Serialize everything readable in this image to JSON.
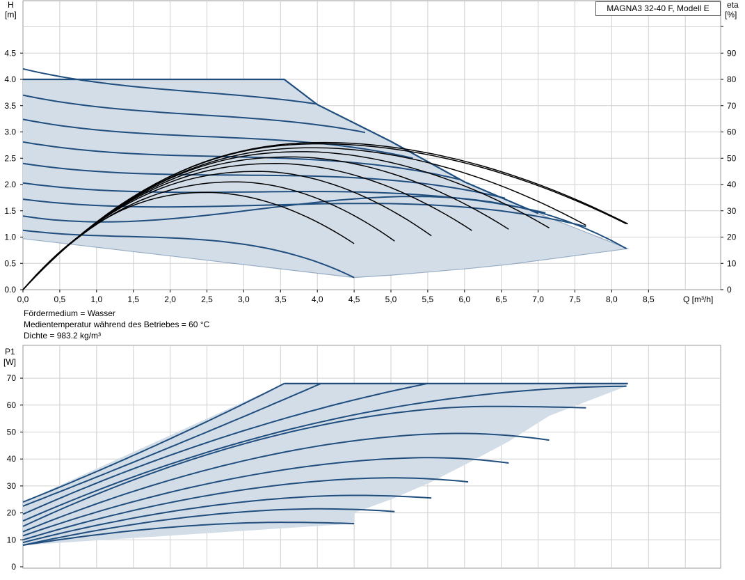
{
  "model_label": "MAGNA3 32-40 F, Modell E",
  "notes": {
    "medium": "Fördermedium = Wasser",
    "temperature": "Medientemperatur während des Betriebes = 60 °C",
    "density": "Dichte = 983.2 kg/m³"
  },
  "colors": {
    "grid": "#cfcfcf",
    "region_fill": "#d3dde8",
    "curve_blue": "#1f4e7e",
    "curve_black": "#000000",
    "border": "#9a9a9a"
  },
  "chart_data": [
    {
      "type": "line",
      "title": "",
      "xlabel": "Q [m³/h]",
      "ylabel": "H [m]",
      "y2label": "eta [%]",
      "xlim": [
        0,
        9.5
      ],
      "ylim": [
        0,
        5.3
      ],
      "y2lim": [
        0,
        106
      ],
      "x_ticks": [
        "0,0",
        "0,5",
        "1,0",
        "1,5",
        "2,0",
        "2,5",
        "3,0",
        "3,5",
        "4,0",
        "4,5",
        "5,0",
        "5,5",
        "6,0",
        "6,5",
        "7,0",
        "7,5",
        "8,0",
        "8,5"
      ],
      "y_ticks": [
        "0.0",
        "0.5",
        "1.0",
        "1.5",
        "2.0",
        "2.5",
        "3.0",
        "3.5",
        "4.0",
        "4.5"
      ],
      "y2_ticks": [
        "0",
        "10",
        "20",
        "30",
        "40",
        "50",
        "60",
        "70",
        "80",
        "90"
      ],
      "grid": true,
      "head_envelope": [
        [
          0,
          4.0
        ],
        [
          3.55,
          4.0
        ],
        [
          4.0,
          3.52
        ],
        [
          5.0,
          2.82
        ],
        [
          6.0,
          2.05
        ],
        [
          7.0,
          1.45
        ],
        [
          8.22,
          0.78
        ],
        [
          7.15,
          0.58
        ],
        [
          6.6,
          0.48
        ],
        [
          6.05,
          0.4
        ],
        [
          5.55,
          0.34
        ],
        [
          5.05,
          0.28
        ],
        [
          4.5,
          0.23
        ],
        [
          0,
          0.97
        ]
      ],
      "head_curves": [
        {
          "h0": 3.6,
          "peak": [
            1.8,
            3.9
          ],
          "end": [
            4.0,
            3.53
          ]
        },
        {
          "h0": 3.2,
          "peak": [
            1.7,
            3.45
          ],
          "end": [
            4.65,
            2.99
          ]
        },
        {
          "h0": 2.8,
          "peak": [
            1.6,
            3.02
          ],
          "end": [
            5.3,
            2.5
          ]
        },
        {
          "h0": 2.43,
          "peak": [
            1.55,
            2.62
          ],
          "end": [
            5.95,
            2.09
          ]
        },
        {
          "h0": 2.08,
          "peak": [
            1.5,
            2.24
          ],
          "end": [
            6.55,
            1.74
          ]
        },
        {
          "h0": 1.75,
          "peak": [
            1.45,
            1.89
          ],
          "end": [
            7.1,
            1.46
          ]
        },
        {
          "h0": 1.48,
          "peak": [
            1.35,
            1.6
          ],
          "end": [
            7.65,
            1.2
          ]
        },
        {
          "h0": 1.2,
          "peak": [
            0.9,
            1.3
          ],
          "end": [
            8.2,
            0.78
          ]
        },
        {
          "h0": 0.97,
          "peak": [
            0.9,
            1.05
          ],
          "end": [
            4.5,
            0.23
          ]
        }
      ],
      "eta_curves": [
        {
          "peak": [
            2.5,
            37
          ],
          "end": [
            4.5,
            17.5
          ]
        },
        {
          "peak": [
            2.9,
            41
          ],
          "end": [
            5.05,
            18.5
          ]
        },
        {
          "peak": [
            3.2,
            45
          ],
          "end": [
            5.55,
            20.5
          ]
        },
        {
          "peak": [
            3.45,
            48
          ],
          "end": [
            6.1,
            22.5
          ]
        },
        {
          "peak": [
            3.65,
            50.5
          ],
          "end": [
            6.6,
            23
          ]
        },
        {
          "peak": [
            3.8,
            52.5
          ],
          "end": [
            7.15,
            23.5
          ]
        },
        {
          "peak": [
            3.95,
            54
          ],
          "end": [
            7.65,
            24.5
          ]
        },
        {
          "peak": [
            4.05,
            55.5
          ],
          "end": [
            8.2,
            25
          ]
        },
        {
          "peak": [
            4.1,
            56
          ],
          "end": [
            8.22,
            25
          ]
        }
      ]
    },
    {
      "type": "line",
      "title": "",
      "xlabel": "",
      "ylabel": "P1 [W]",
      "xlim": [
        0,
        9.5
      ],
      "ylim": [
        0,
        78
      ],
      "y_ticks": [
        "0",
        "10",
        "20",
        "30",
        "40",
        "50",
        "60",
        "70"
      ],
      "grid": true,
      "power_envelope": [
        [
          0,
          24
        ],
        [
          3.55,
          68
        ],
        [
          8.22,
          68
        ],
        [
          8.2,
          67
        ],
        [
          7.15,
          56
        ],
        [
          6.6,
          46.5
        ],
        [
          6.05,
          38.5
        ],
        [
          5.55,
          31.5
        ],
        [
          5.05,
          25.5
        ],
        [
          4.5,
          20
        ],
        [
          4.5,
          16
        ],
        [
          0,
          8
        ]
      ],
      "power_curves": [
        {
          "start": 24,
          "mid": [
            1.8,
            45
          ],
          "end": [
            3.55,
            68
          ]
        },
        {
          "start": 22.5,
          "mid": [
            2.1,
            45.5
          ],
          "end": [
            4.05,
            68
          ]
        },
        {
          "start": 19.5,
          "mid": [
            2.6,
            47
          ],
          "end": [
            5.5,
            68
          ]
        },
        {
          "start": 17,
          "mid": [
            3.2,
            48
          ],
          "end": [
            8.2,
            67
          ]
        },
        {
          "start": 15,
          "mid": [
            3.6,
            46
          ],
          "end": [
            7.65,
            59
          ],
          "peak": [
            6.3,
            59.5
          ]
        },
        {
          "start": 13,
          "mid": [
            3.3,
            40
          ],
          "end": [
            7.15,
            47
          ],
          "peak": [
            5.9,
            49.5
          ]
        },
        {
          "start": 11.5,
          "mid": [
            3.1,
            34
          ],
          "end": [
            6.6,
            38.5
          ],
          "peak": [
            5.5,
            40.5
          ]
        },
        {
          "start": 10,
          "mid": [
            3.0,
            28.5
          ],
          "end": [
            6.05,
            31.5
          ],
          "peak": [
            5.0,
            33
          ]
        },
        {
          "start": 9,
          "mid": [
            2.8,
            24
          ],
          "end": [
            5.55,
            25.5
          ],
          "peak": [
            4.5,
            26.5
          ]
        },
        {
          "start": 8,
          "mid": [
            2.5,
            18.5
          ],
          "end": [
            5.05,
            20.5
          ],
          "peak": [
            4.0,
            21.5
          ]
        },
        {
          "start": 8,
          "mid": [
            2.4,
            15
          ],
          "end": [
            4.5,
            16
          ],
          "peak": [
            3.5,
            16.5
          ]
        }
      ]
    }
  ]
}
